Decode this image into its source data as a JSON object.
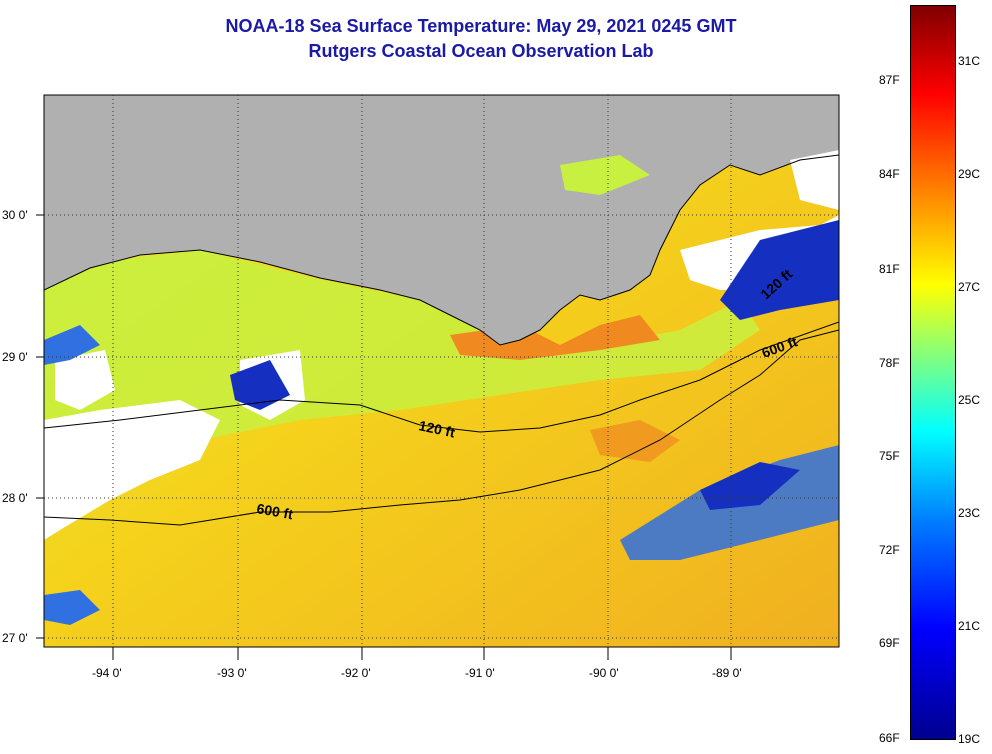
{
  "title": {
    "line1": "NOAA-18 Sea Surface Temperature:  May 29, 2021 0245 GMT",
    "line2": "Rutgers Coastal Ocean Observation Lab"
  },
  "map": {
    "lon_labels": [
      "-94 0'",
      "-93 0'",
      "-92 0'",
      "-91 0'",
      "-90 0'",
      "-89 0'"
    ],
    "lat_labels": [
      "30 0'",
      "29 0'",
      "28 0'",
      "27 0'"
    ],
    "contour_labels": {
      "shelf_120_west": "120 ft",
      "shelf_120_east": "120 ft",
      "shelf_600_west": "600 ft",
      "shelf_600_east": "600 ft"
    },
    "colors": {
      "land": "#b0b0b0",
      "cloud": "#ffffff",
      "warm_coast": "#f08a20",
      "mid_ocean": "#f5c21c",
      "shelf_green": "#c8f040",
      "cold_patch": "#1530c0"
    }
  },
  "colorbar": {
    "fahrenheit_labels": [
      "87F",
      "84F",
      "81F",
      "78F",
      "75F",
      "72F",
      "69F",
      "66F"
    ],
    "celsius_labels": [
      "31C",
      "29C",
      "27C",
      "25C",
      "23C",
      "21C",
      "19C"
    ],
    "range_c": [
      19,
      32
    ]
  }
}
